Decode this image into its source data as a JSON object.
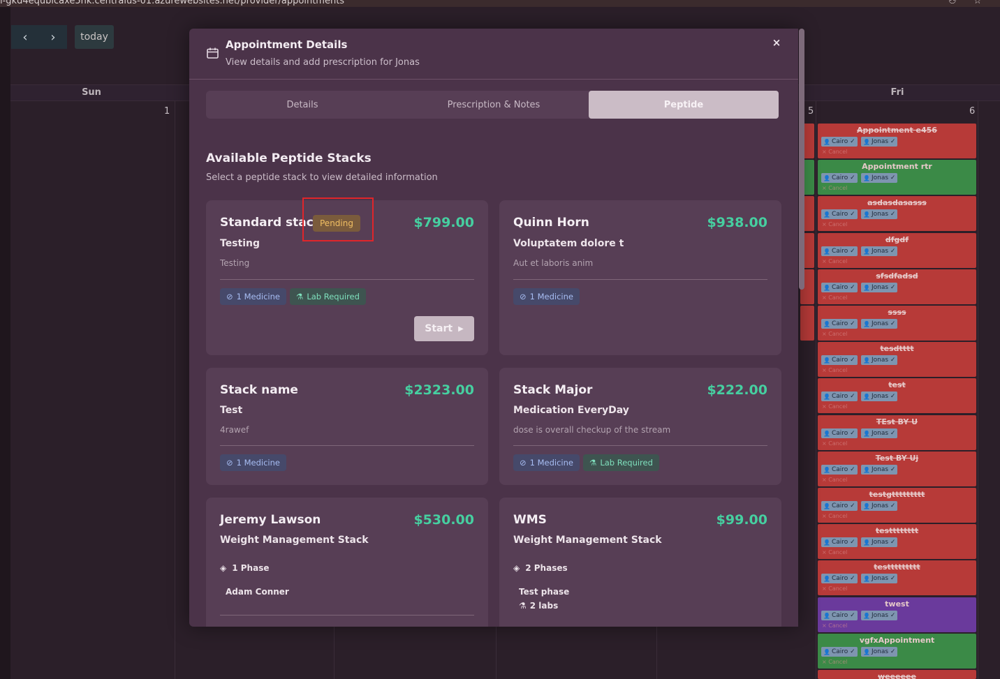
{
  "browser": {
    "url": "l-gkd4equbicaxe5hk.centralus-01.azurewebsites.net/provider/appointments"
  },
  "calendar": {
    "today_label": "today",
    "prev_icon": "chevron-left-icon",
    "next_icon": "chevron-right-icon",
    "days": [
      "Sun",
      "Fri"
    ],
    "day_numbers": [
      "1",
      "5",
      "6"
    ],
    "events": [
      {
        "title": "Appointment e456",
        "color": "red",
        "strike": true
      },
      {
        "title": "Appointment rtr",
        "color": "green",
        "strike": false
      },
      {
        "title": "asdasdasasss",
        "color": "red",
        "strike": true
      },
      {
        "title": "dfgdf",
        "color": "red",
        "strike": true
      },
      {
        "title": "sfsdfadsd",
        "color": "red",
        "strike": true
      },
      {
        "title": "ssss",
        "color": "red",
        "strike": true
      },
      {
        "title": "tesdtttt",
        "color": "red",
        "strike": true
      },
      {
        "title": "test",
        "color": "red",
        "strike": true
      },
      {
        "title": "TEst BY U",
        "color": "red",
        "strike": true
      },
      {
        "title": "Test BY Uj",
        "color": "red",
        "strike": true
      },
      {
        "title": "testgttttttttt",
        "color": "red",
        "strike": true
      },
      {
        "title": "testttttttt",
        "color": "red",
        "strike": true
      },
      {
        "title": "testtttttttt",
        "color": "red",
        "strike": true
      },
      {
        "title": "twest",
        "color": "purple",
        "strike": false
      },
      {
        "title": "vgfxAppointment",
        "color": "green",
        "strike": false
      },
      {
        "title": "weeeeee",
        "color": "red",
        "strike": true
      }
    ],
    "chip_a": "Cairo",
    "chip_b": "Jonas",
    "cancel_label": "Cancel"
  },
  "modal": {
    "title": "Appointment Details",
    "subtitle": "View details and add prescription for Jonas",
    "close_label": "×",
    "tabs": [
      {
        "label": "Details",
        "active": false
      },
      {
        "label": "Prescription & Notes",
        "active": false
      },
      {
        "label": "Peptide",
        "active": true
      }
    ],
    "section_title": "Available Peptide Stacks",
    "section_subtitle": "Select a peptide stack to view detailed information",
    "cards": [
      {
        "name": "Standard stack",
        "status": "Pending",
        "price": "$799.00",
        "description": "Testing",
        "note": "Testing",
        "medicine": "1 Medicine",
        "lab": "Lab Required",
        "action": "Start"
      },
      {
        "name": "Quinn Horn",
        "price": "$938.00",
        "description": "Voluptatem dolore t",
        "note": "Aut et laboris anim",
        "medicine": "1 Medicine"
      },
      {
        "name": "Stack name",
        "price": "$2323.00",
        "description": "Test",
        "note": "4rawef",
        "medicine": "1 Medicine"
      },
      {
        "name": "Stack Major",
        "price": "$222.00",
        "description": "Medication EveryDay",
        "note": "dose is overall checkup of the stream",
        "medicine": "1 Medicine",
        "lab": "Lab Required"
      },
      {
        "name": "Jeremy Lawson",
        "price": "$530.00",
        "description": "Weight Management Stack",
        "phases": "1 Phase",
        "phase_detail": "Adam Conner"
      },
      {
        "name": "WMS",
        "price": "$99.00",
        "description": "Weight Management Stack",
        "phases": "2 Phases",
        "phase_detail": "Test phase",
        "labs": "2 labs"
      }
    ]
  },
  "colors": {
    "accent_price": "#46cfa0",
    "pending_text": "#f1bf63",
    "highlight": "#e0252a"
  }
}
